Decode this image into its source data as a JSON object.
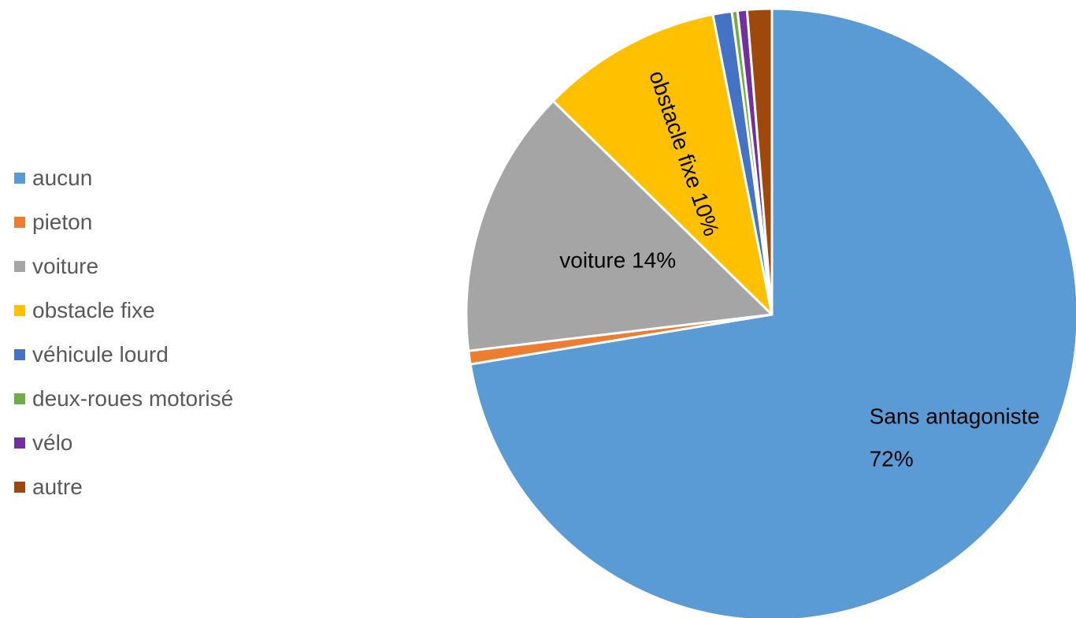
{
  "chart_data": {
    "type": "pie",
    "title": "",
    "categories": [
      "aucun",
      "pieton",
      "voiture",
      "obstacle fixe",
      "véhicule lourd",
      "deux-roues motorisé",
      "vélo",
      "autre"
    ],
    "values": [
      72.4,
      0.7,
      14.2,
      9.6,
      1.0,
      0.3,
      0.5,
      1.3
    ],
    "colors": [
      "#5B9BD5",
      "#ED7D31",
      "#A5A5A5",
      "#FFC000",
      "#4472C4",
      "#70AD47",
      "#7030A0",
      "#9E480E"
    ],
    "start_angle_deg": 0,
    "direction": "clockwise",
    "legend_position": "left",
    "legend": [
      {
        "label": "aucun",
        "color": "#5B9BD5"
      },
      {
        "label": "pieton",
        "color": "#ED7D31"
      },
      {
        "label": "voiture",
        "color": "#A5A5A5"
      },
      {
        "label": "obstacle fixe",
        "color": "#FFC000"
      },
      {
        "label": "véhicule lourd",
        "color": "#4472C4"
      },
      {
        "label": "deux-roues motorisé",
        "color": "#70AD47"
      },
      {
        "label": "vélo",
        "color": "#7030A0"
      },
      {
        "label": "autre",
        "color": "#9E480E"
      }
    ],
    "data_labels": [
      {
        "slice": 0,
        "lines": [
          "Sans antagoniste",
          "72%"
        ]
      },
      {
        "slice": 2,
        "lines": [
          "voiture 14%"
        ]
      },
      {
        "slice": 3,
        "lines": [
          "obstacle fixe 10%"
        ]
      }
    ]
  }
}
